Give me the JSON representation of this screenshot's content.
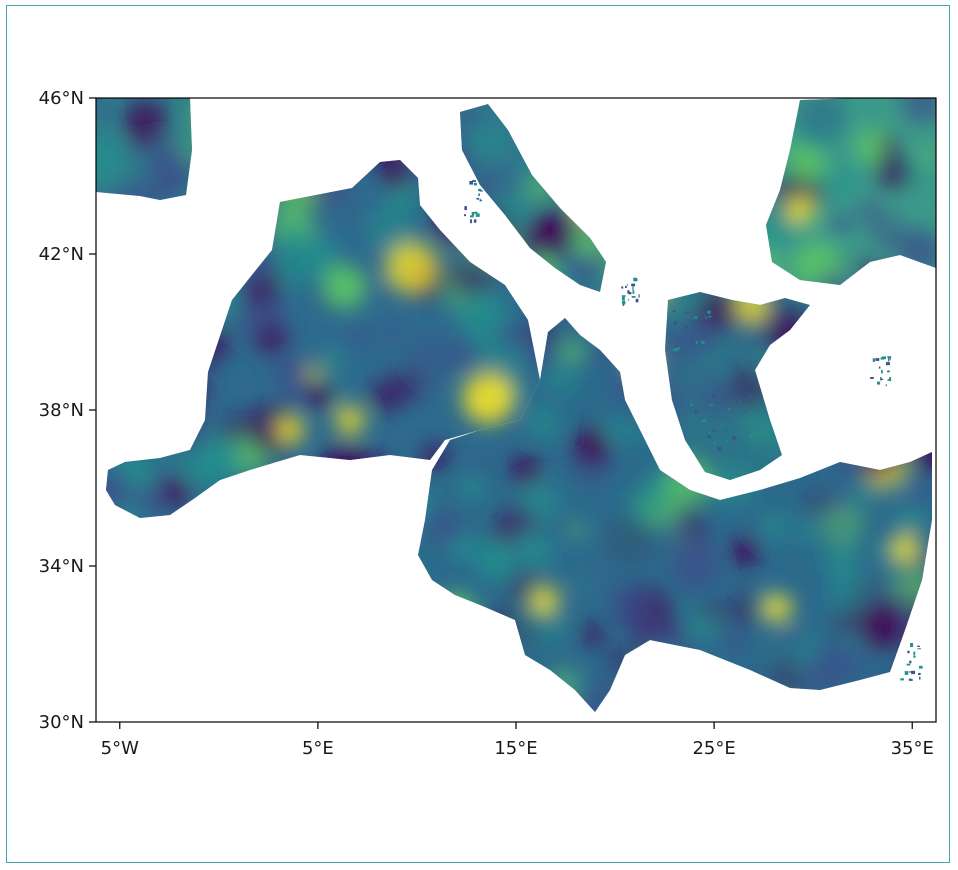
{
  "chart_data": {
    "type": "heatmap",
    "title": "",
    "xlabel": "",
    "ylabel": "",
    "colormap": "viridis",
    "colorscale": [
      "#440154",
      "#3b528b",
      "#21918c",
      "#5ec962",
      "#fde725"
    ],
    "xlim": [
      -6.2,
      36.2
    ],
    "ylim": [
      30,
      46
    ],
    "x_ticks": [
      {
        "value": -5,
        "label": "5°W"
      },
      {
        "value": 5,
        "label": "5°E"
      },
      {
        "value": 15,
        "label": "15°E"
      },
      {
        "value": 25,
        "label": "25°E"
      },
      {
        "value": 35,
        "label": "35°E"
      }
    ],
    "y_ticks": [
      {
        "value": 30,
        "label": "30°N"
      },
      {
        "value": 34,
        "label": "34°N"
      },
      {
        "value": 38,
        "label": "38°N"
      },
      {
        "value": 42,
        "label": "42°N"
      },
      {
        "value": 46,
        "label": "46°N"
      }
    ],
    "grid": false,
    "legend": "none"
  }
}
